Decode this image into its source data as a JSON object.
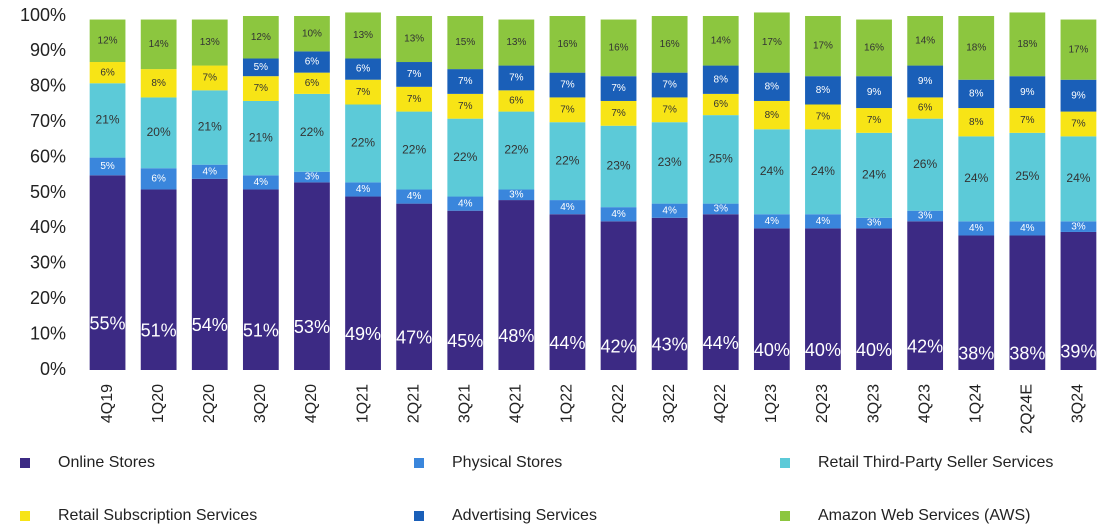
{
  "chart_data": {
    "type": "stacked_bar",
    "categories": [
      "4Q19",
      "1Q20",
      "2Q20",
      "3Q20",
      "4Q20",
      "1Q21",
      "2Q21",
      "3Q21",
      "4Q21",
      "1Q22",
      "2Q22",
      "3Q22",
      "4Q22",
      "1Q23",
      "2Q23",
      "3Q23",
      "4Q23",
      "1Q24",
      "2Q24E",
      "3Q24"
    ],
    "series": [
      {
        "name": "Online Stores",
        "color": "#3c2a84",
        "values": [
          55,
          51,
          54,
          51,
          53,
          49,
          47,
          45,
          48,
          44,
          42,
          43,
          44,
          40,
          40,
          40,
          42,
          38,
          38,
          39
        ],
        "value_labels": [
          "55%",
          "51%",
          "54%",
          "51%",
          "53%",
          "49%",
          "47%",
          "45%",
          "48%",
          "44%",
          "42%",
          "43%",
          "44%",
          "40%",
          "40%",
          "40%",
          "42%",
          "38%",
          "38%",
          "39%"
        ]
      },
      {
        "name": "Physical Stores",
        "color": "#3a86dc",
        "values": [
          5,
          6,
          4,
          4,
          3,
          4,
          4,
          4,
          3,
          4,
          4,
          4,
          3,
          4,
          4,
          3,
          3,
          4,
          4,
          3
        ],
        "value_labels": [
          "5%",
          "6%",
          "4%",
          "4%",
          "3%",
          "4%",
          "4%",
          "4%",
          "3%",
          "4%",
          "4%",
          "4%",
          "3%",
          "4%",
          "4%",
          "3%",
          "3%",
          "4%",
          "4%",
          "3%"
        ]
      },
      {
        "name": "Retail Third-Party Seller Services",
        "color": "#5ccad8",
        "values": [
          21,
          20,
          21,
          21,
          22,
          22,
          22,
          22,
          22,
          22,
          23,
          23,
          25,
          24,
          24,
          24,
          26,
          24,
          25,
          24
        ],
        "value_labels": [
          "21%",
          "20%",
          "21%",
          "21%",
          "22%",
          "22%",
          "22%",
          "22%",
          "22%",
          "22%",
          "23%",
          "23%",
          "25%",
          "24%",
          "24%",
          "24%",
          "26%",
          "24%",
          "25%",
          "24%"
        ]
      },
      {
        "name": "Retail Subscription Services",
        "color": "#f7e416",
        "values": [
          6,
          8,
          7,
          7,
          6,
          7,
          7,
          7,
          6,
          7,
          7,
          7,
          6,
          8,
          7,
          7,
          6,
          8,
          7,
          7
        ],
        "value_labels": [
          "6%",
          "8%",
          "7%",
          "7%",
          "6%",
          "7%",
          "7%",
          "7%",
          "6%",
          "7%",
          "7%",
          "7%",
          "6%",
          "8%",
          "7%",
          "7%",
          "6%",
          "8%",
          "7%",
          "7%"
        ]
      },
      {
        "name": "Advertising Services",
        "color": "#1a5fb8",
        "values": [
          null,
          null,
          null,
          5,
          6,
          6,
          7,
          7,
          7,
          7,
          7,
          7,
          8,
          8,
          8,
          9,
          9,
          8,
          9,
          9
        ],
        "value_labels": [
          null,
          null,
          null,
          "5%",
          "6%",
          "6%",
          "7%",
          "7%",
          "7%",
          "7%",
          "7%",
          "7%",
          "8%",
          "8%",
          "8%",
          "9%",
          "9%",
          "8%",
          "9%",
          "9%"
        ]
      },
      {
        "name": "Amazon Web Services (AWS)",
        "color": "#8cc63f",
        "values": [
          12,
          14,
          13,
          12,
          10,
          13,
          13,
          15,
          13,
          16,
          16,
          16,
          14,
          17,
          17,
          16,
          14,
          18,
          18,
          17
        ],
        "value_labels": [
          "12%",
          "14%",
          "13%",
          "12%",
          "10%",
          "13%",
          "13%",
          "15%",
          "13%",
          "16%",
          "16%",
          "16%",
          "14%",
          "17%",
          "17%",
          "16%",
          "14%",
          "18%",
          "18%",
          "17%"
        ]
      }
    ],
    "ylim": [
      0,
      100
    ],
    "yticks": [
      {
        "value": 0,
        "label": "0%"
      },
      {
        "value": 10,
        "label": "10%"
      },
      {
        "value": 20,
        "label": "20%"
      },
      {
        "value": 30,
        "label": "30%"
      },
      {
        "value": 40,
        "label": "40%"
      },
      {
        "value": 50,
        "label": "50%"
      },
      {
        "value": 60,
        "label": "60%"
      },
      {
        "value": 70,
        "label": "70%"
      },
      {
        "value": 80,
        "label": "80%"
      },
      {
        "value": 90,
        "label": "90%"
      },
      {
        "value": 100,
        "label": "100%"
      }
    ]
  }
}
